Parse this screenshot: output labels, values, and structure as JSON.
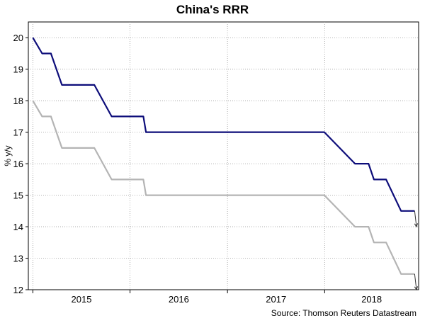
{
  "chart_data": {
    "type": "line",
    "title": "China's RRR",
    "ylabel": "% y/y",
    "xlabel": "",
    "ylim": [
      12,
      20.5
    ],
    "xlim": [
      "2014-12-15",
      "2018-12-20"
    ],
    "yticks": [
      12,
      13,
      14,
      15,
      16,
      17,
      18,
      19,
      20
    ],
    "xtick_labels": [
      "2015",
      "2016",
      "2017",
      "2018"
    ],
    "source": "Source: Thomson Reuters Datastream",
    "grid": true,
    "series": [
      {
        "color": "#0d0d7a",
        "points": [
          [
            "2015-01-01",
            20.0
          ],
          [
            "2015-02-05",
            19.5
          ],
          [
            "2015-03-10",
            19.5
          ],
          [
            "2015-04-20",
            18.5
          ],
          [
            "2015-08-20",
            18.5
          ],
          [
            "2015-10-24",
            17.5
          ],
          [
            "2016-02-20",
            17.5
          ],
          [
            "2016-03-01",
            17.0
          ],
          [
            "2017-12-31",
            17.0
          ],
          [
            "2018-04-25",
            16.0
          ],
          [
            "2018-06-15",
            16.0
          ],
          [
            "2018-07-05",
            15.5
          ],
          [
            "2018-08-20",
            15.5
          ],
          [
            "2018-10-15",
            14.5
          ],
          [
            "2018-11-30",
            14.5
          ],
          [
            "2018-12-05",
            14.5
          ]
        ],
        "projection": [
          [
            "2018-12-05",
            14.5
          ],
          [
            "2018-12-12",
            14.0
          ]
        ]
      },
      {
        "color": "#b4b4b4",
        "points": [
          [
            "2015-01-01",
            18.0
          ],
          [
            "2015-02-05",
            17.5
          ],
          [
            "2015-03-10",
            17.5
          ],
          [
            "2015-04-20",
            16.5
          ],
          [
            "2015-08-20",
            16.5
          ],
          [
            "2015-10-24",
            15.5
          ],
          [
            "2016-02-20",
            15.5
          ],
          [
            "2016-03-01",
            15.0
          ],
          [
            "2017-12-31",
            15.0
          ],
          [
            "2018-04-25",
            14.0
          ],
          [
            "2018-06-15",
            14.0
          ],
          [
            "2018-07-05",
            13.5
          ],
          [
            "2018-08-20",
            13.5
          ],
          [
            "2018-10-15",
            12.5
          ],
          [
            "2018-11-30",
            12.5
          ],
          [
            "2018-12-05",
            12.5
          ]
        ],
        "projection": [
          [
            "2018-12-05",
            12.5
          ],
          [
            "2018-12-12",
            12.0
          ]
        ]
      }
    ]
  }
}
